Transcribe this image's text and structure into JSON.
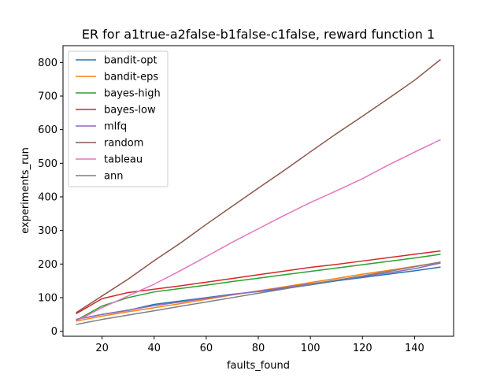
{
  "chart_data": {
    "type": "line",
    "title": "ER for a1true-a2false-b1false-c1false, reward function 1",
    "xlabel": "faults_found",
    "ylabel": "experiments_run",
    "xlim": [
      5,
      155
    ],
    "ylim": [
      -15,
      850
    ],
    "xticks": [
      20,
      40,
      60,
      80,
      100,
      120,
      140
    ],
    "yticks": [
      0,
      100,
      200,
      300,
      400,
      500,
      600,
      700,
      800
    ],
    "grid": false,
    "legend_position": "upper left",
    "x": [
      10,
      20,
      30,
      40,
      50,
      60,
      70,
      80,
      90,
      100,
      110,
      120,
      130,
      140,
      150
    ],
    "series": [
      {
        "name": "bandit-opt",
        "color": "#1f77b4",
        "values": [
          35,
          50,
          62,
          80,
          90,
          100,
          110,
          118,
          127,
          138,
          150,
          160,
          170,
          180,
          191
        ]
      },
      {
        "name": "bandit-eps",
        "color": "#ff7f0e",
        "values": [
          30,
          45,
          58,
          70,
          82,
          95,
          108,
          120,
          132,
          145,
          157,
          170,
          181,
          193,
          205
        ]
      },
      {
        "name": "bayes-high",
        "color": "#2ca02c",
        "values": [
          32,
          75,
          100,
          117,
          127,
          137,
          148,
          158,
          168,
          178,
          188,
          198,
          208,
          218,
          229
        ]
      },
      {
        "name": "bayes-low",
        "color": "#d62728",
        "values": [
          52,
          97,
          115,
          125,
          135,
          146,
          157,
          168,
          179,
          190,
          199,
          209,
          219,
          229,
          239
        ]
      },
      {
        "name": "mlfq",
        "color": "#9467bd",
        "values": [
          35,
          50,
          63,
          76,
          87,
          98,
          109,
          119,
          130,
          141,
          152,
          163,
          174,
          186,
          203
        ]
      },
      {
        "name": "random",
        "color": "#8c564b",
        "values": [
          55,
          105,
          155,
          210,
          262,
          318,
          372,
          426,
          479,
          534,
          588,
          640,
          693,
          747,
          809
        ]
      },
      {
        "name": "tableau",
        "color": "#e377c2",
        "values": [
          30,
          70,
          105,
          140,
          180,
          222,
          265,
          305,
          345,
          383,
          418,
          454,
          495,
          533,
          570
        ]
      },
      {
        "name": "ann",
        "color": "#7f7f7f",
        "values": [
          20,
          35,
          48,
          61,
          74,
          87,
          100,
          113,
          126,
          139,
          152,
          165,
          178,
          192,
          206
        ]
      }
    ]
  }
}
